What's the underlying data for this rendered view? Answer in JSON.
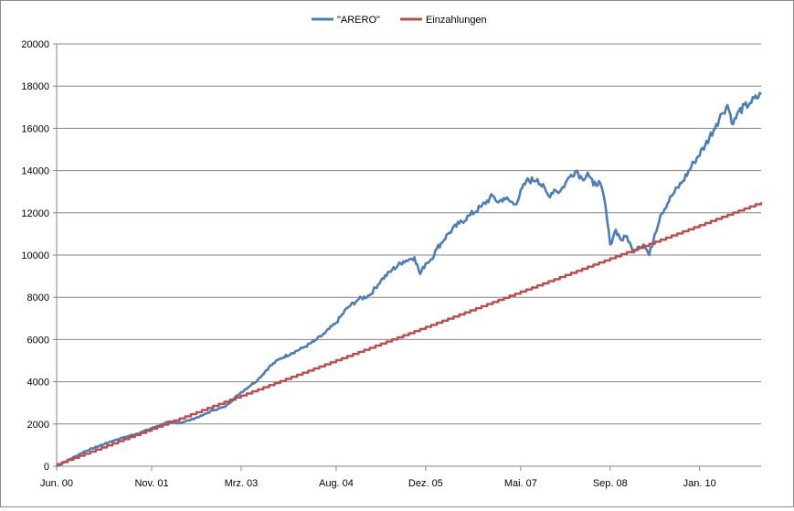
{
  "chart_data": {
    "type": "line",
    "title": "",
    "xlabel": "",
    "ylabel": "",
    "ylim": [
      0,
      20000
    ],
    "y_ticks": [
      0,
      2000,
      4000,
      6000,
      8000,
      10000,
      12000,
      14000,
      16000,
      18000,
      20000
    ],
    "x_tick_labels": [
      "Jun. 00",
      "Nov. 01",
      "Mrz. 03",
      "Aug. 04",
      "Dez. 05",
      "Mai. 07",
      "Sep. 08",
      "Jan. 10"
    ],
    "x_tick_positions": [
      0,
      17,
      33,
      50,
      66,
      83,
      99,
      115
    ],
    "x_range": [
      0,
      126
    ],
    "grid": "horizontal",
    "legend_position": "top",
    "x_unit": "months since Jun. 00",
    "series": [
      {
        "name": "\"ARERO\"",
        "color": "#4a7ebb",
        "x": [
          0,
          5,
          10,
          15,
          18,
          20,
          22,
          24,
          26,
          28,
          30,
          33,
          36,
          38,
          40,
          42,
          44,
          46,
          48,
          50,
          52,
          54,
          56,
          58,
          60,
          62,
          64,
          65,
          66,
          67,
          68,
          70,
          72,
          74,
          76,
          78,
          79,
          80,
          82,
          84,
          86,
          88,
          89,
          90,
          91,
          92,
          93,
          94,
          95,
          96,
          97,
          98,
          99,
          100,
          101,
          102,
          103,
          104,
          105,
          106,
          107,
          108,
          110,
          112,
          114,
          116,
          118,
          119,
          120,
          121,
          122,
          124,
          126
        ],
        "values": [
          0,
          700,
          1200,
          1600,
          1900,
          2100,
          2050,
          2200,
          2400,
          2650,
          2800,
          3500,
          4100,
          4700,
          5100,
          5350,
          5600,
          5900,
          6300,
          6800,
          7500,
          7900,
          8100,
          8800,
          9300,
          9700,
          9900,
          9100,
          9600,
          9800,
          10300,
          11000,
          11500,
          11900,
          12300,
          12800,
          12500,
          12700,
          12400,
          13500,
          13600,
          12800,
          13100,
          13000,
          13400,
          13800,
          14000,
          13600,
          13900,
          13300,
          13500,
          12600,
          10500,
          11200,
          10700,
          10900,
          10200,
          10400,
          10500,
          10000,
          11000,
          11900,
          12800,
          13500,
          14400,
          15200,
          16200,
          16700,
          17100,
          16200,
          16800,
          17200,
          17600
        ]
      },
      {
        "name": "Einzahlungen",
        "color": "#be4b48",
        "x": [
          0,
          126
        ],
        "values": [
          100,
          12500
        ]
      }
    ]
  }
}
